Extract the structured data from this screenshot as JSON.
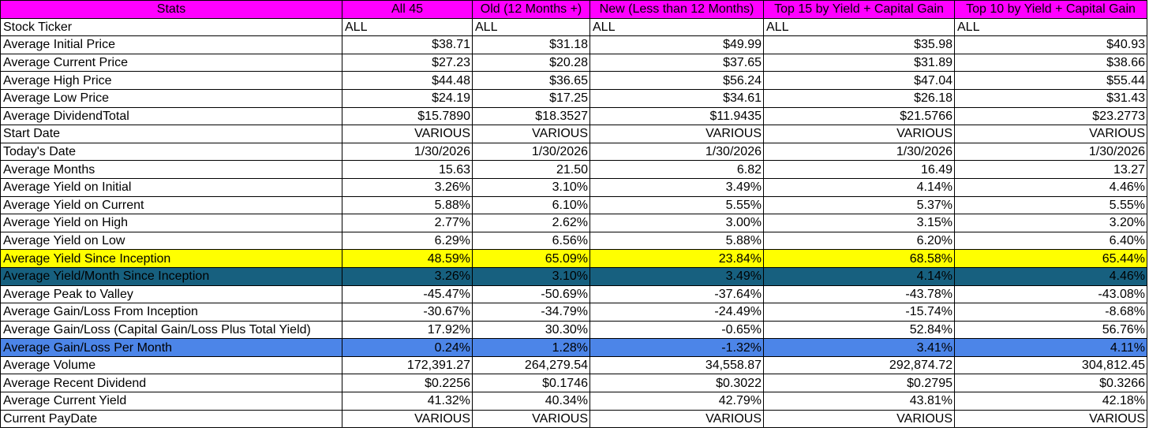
{
  "table": {
    "headers": [
      "Stats",
      "All 45",
      "Old (12 Months +)",
      "New (Less than 12 Months)",
      "Top 15 by Yield + Capital Gain",
      "Top 10 by Yield + Capital Gain"
    ],
    "rows": [
      {
        "label": "Stock Ticker",
        "values": [
          "ALL",
          "ALL",
          "ALL",
          "ALL",
          "ALL"
        ]
      },
      {
        "label": "Average Initial Price",
        "values": [
          "$38.71",
          "$31.18",
          "$49.99",
          "$35.98",
          "$40.93"
        ]
      },
      {
        "label": "Average Current Price",
        "values": [
          "$27.23",
          "$20.28",
          "$37.65",
          "$31.89",
          "$38.66"
        ]
      },
      {
        "label": "Average High Price",
        "values": [
          "$44.48",
          "$36.65",
          "$56.24",
          "$47.04",
          "$55.44"
        ]
      },
      {
        "label": "Average Low Price",
        "values": [
          "$24.19",
          "$17.25",
          "$34.61",
          "$26.18",
          "$31.43"
        ]
      },
      {
        "label": "Average DividendTotal",
        "values": [
          "$15.7890",
          "$18.3527",
          "$11.9435",
          "$21.5766",
          "$23.2773"
        ]
      },
      {
        "label": "Start Date",
        "values": [
          "VARIOUS",
          "VARIOUS",
          "VARIOUS",
          "VARIOUS",
          "VARIOUS"
        ]
      },
      {
        "label": "Today's Date",
        "values": [
          "1/30/2026",
          "1/30/2026",
          "1/30/2026",
          "1/30/2026",
          "1/30/2026"
        ]
      },
      {
        "label": "Average Months",
        "values": [
          "15.63",
          "21.50",
          "6.82",
          "16.49",
          "13.27"
        ]
      },
      {
        "label": "Average Yield on Initial",
        "values": [
          "3.26%",
          "3.10%",
          "3.49%",
          "4.14%",
          "4.46%"
        ]
      },
      {
        "label": "Average Yield on Current",
        "values": [
          "5.88%",
          "6.10%",
          "5.55%",
          "5.37%",
          "5.55%"
        ]
      },
      {
        "label": "Average Yield on High",
        "values": [
          "2.77%",
          "2.62%",
          "3.00%",
          "3.15%",
          "3.20%"
        ]
      },
      {
        "label": "Average Yield on Low",
        "values": [
          "6.29%",
          "6.56%",
          "5.88%",
          "6.20%",
          "6.40%"
        ]
      },
      {
        "label": "Average Yield Since Inception",
        "values": [
          "48.59%",
          "65.09%",
          "23.84%",
          "68.58%",
          "65.44%"
        ]
      },
      {
        "label": "Average Yield/Month Since Inception",
        "values": [
          "3.26%",
          "3.10%",
          "3.49%",
          "4.14%",
          "4.46%"
        ]
      },
      {
        "label": "Average Peak to Valley",
        "values": [
          "-45.47%",
          "-50.69%",
          "-37.64%",
          "-43.78%",
          "-43.08%"
        ]
      },
      {
        "label": "Average Gain/Loss From Inception",
        "values": [
          "-30.67%",
          "-34.79%",
          "-24.49%",
          "-15.74%",
          "-8.68%"
        ]
      },
      {
        "label": "Average Gain/Loss (Capital Gain/Loss Plus Total Yield)",
        "values": [
          "17.92%",
          "30.30%",
          "-0.65%",
          "52.84%",
          "56.76%"
        ]
      },
      {
        "label": "Average Gain/Loss Per Month",
        "values": [
          "0.24%",
          "1.28%",
          "-1.32%",
          "3.41%",
          "4.11%"
        ]
      },
      {
        "label": "Average Volume",
        "values": [
          "172,391.27",
          "264,279.54",
          "34,558.87",
          "292,874.72",
          "304,812.45"
        ]
      },
      {
        "label": "Average Recent Dividend",
        "values": [
          "$0.2256",
          "$0.1746",
          "$0.3022",
          "$0.2795",
          "$0.3266"
        ]
      },
      {
        "label": "Average Current Yield",
        "values": [
          "41.32%",
          "40.34%",
          "42.79%",
          "43.81%",
          "42.18%"
        ]
      },
      {
        "label": "Current PayDate",
        "values": [
          "VARIOUS",
          "VARIOUS",
          "VARIOUS",
          "VARIOUS",
          "VARIOUS"
        ]
      }
    ]
  },
  "colors": {
    "header_background": "#ff00ff",
    "yield_since_inception_row": "#ffff00",
    "yield_per_month_row": "#17607f",
    "gain_loss_per_month_row": "#4c85e8",
    "grid_lines": "#000000"
  }
}
